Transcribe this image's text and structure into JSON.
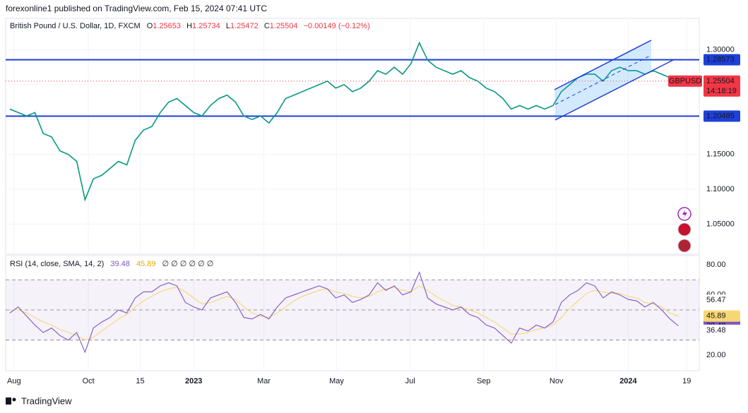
{
  "header": "forexonline1 published on TradingView.com, Feb 15, 2024 07:41 UTC",
  "footer": "TradingView",
  "chart_data": [
    {
      "type": "line",
      "title": "British Pound / U.S. Dollar, 1D, FXCM",
      "ohlc": [
        {
          "label": "O",
          "value": "1.25653"
        },
        {
          "label": "H",
          "value": "1.25734"
        },
        {
          "label": "L",
          "value": "1.25472"
        },
        {
          "label": "C",
          "value": "1.25504"
        }
      ],
      "change": "−0.00149 (−0.12%)",
      "series": [
        {
          "name": "GBPUSD",
          "color": "#089981",
          "values": [
            1.215,
            1.21,
            1.205,
            1.21,
            1.18,
            1.175,
            1.155,
            1.15,
            1.14,
            1.085,
            1.115,
            1.12,
            1.13,
            1.14,
            1.135,
            1.17,
            1.185,
            1.19,
            1.21,
            1.225,
            1.23,
            1.22,
            1.21,
            1.205,
            1.22,
            1.23,
            1.235,
            1.225,
            1.205,
            1.2,
            1.205,
            1.195,
            1.21,
            1.23,
            1.235,
            1.24,
            1.245,
            1.25,
            1.255,
            1.245,
            1.25,
            1.24,
            1.245,
            1.255,
            1.27,
            1.265,
            1.275,
            1.265,
            1.28,
            1.31,
            1.285,
            1.275,
            1.27,
            1.265,
            1.27,
            1.26,
            1.255,
            1.245,
            1.24,
            1.23,
            1.215,
            1.22,
            1.215,
            1.22,
            1.215,
            1.22,
            1.24,
            1.25,
            1.26,
            1.265,
            1.265,
            1.255,
            1.27,
            1.275,
            1.27,
            1.27,
            1.265,
            1.27,
            1.265,
            1.26,
            1.255
          ]
        }
      ],
      "xlim": [
        -0.5,
        82.5
      ],
      "xticks": [
        {
          "value": 0.5,
          "label": "Aug"
        },
        {
          "value": 9.4,
          "label": "Oct"
        },
        {
          "value": 15.6,
          "label": "15"
        },
        {
          "value": 22,
          "label": "2023"
        },
        {
          "value": 30.4,
          "label": "Mar"
        },
        {
          "value": 39.1,
          "label": "May"
        },
        {
          "value": 47.9,
          "label": "Jul"
        },
        {
          "value": 56.7,
          "label": "Sep"
        },
        {
          "value": 65.4,
          "label": "Nov"
        },
        {
          "value": 74,
          "label": "2024"
        },
        {
          "value": 81,
          "label": "19"
        }
      ],
      "ylim": [
        1.007,
        1.345
      ],
      "yticks": [
        {
          "value": 1.05,
          "label": "1.05000"
        },
        {
          "value": 1.1,
          "label": "1.10000"
        },
        {
          "value": 1.15,
          "label": "1.15000"
        },
        {
          "value": 1.2,
          "label": "1.20000"
        },
        {
          "value": 1.25,
          "label": "1.25000"
        },
        {
          "value": 1.3,
          "label": "1.30000"
        }
      ],
      "grid": true,
      "hlines": [
        {
          "value": 1.28573,
          "label": "1.28573",
          "color": "#1e3fd8"
        },
        {
          "value": 1.20485,
          "label": "1.20485",
          "color": "#1e3fd8"
        }
      ],
      "last": {
        "value": 1.25504,
        "label": "1.25504",
        "symbol": "GBPUSD",
        "countdown": "14:18:19",
        "color": "#f23645"
      }
    },
    {
      "type": "line",
      "title": "RSI (14, close, SMA, 14, 2)",
      "legend_values": [
        "39.48",
        "45.89"
      ],
      "extra": "∅ ∅ ∅ ∅ ∅ ∅",
      "series": [
        {
          "name": "RSI",
          "color": "#7e57c2",
          "values": [
            48,
            52,
            46,
            40,
            35,
            38,
            33,
            30,
            35,
            22,
            38,
            42,
            45,
            50,
            48,
            58,
            62,
            62,
            66,
            68,
            66,
            55,
            52,
            50,
            58,
            60,
            62,
            55,
            45,
            44,
            47,
            44,
            52,
            58,
            60,
            62,
            64,
            66,
            64,
            58,
            60,
            55,
            57,
            60,
            68,
            63,
            66,
            60,
            62,
            75,
            58,
            54,
            52,
            50,
            52,
            47,
            45,
            40,
            38,
            33,
            28,
            38,
            36,
            40,
            38,
            42,
            55,
            60,
            63,
            68,
            66,
            58,
            62,
            60,
            57,
            56,
            52,
            55,
            50,
            44,
            39.48
          ],
          "value_label": {
            "value": 39.48,
            "label": "39.48"
          }
        },
        {
          "name": "RSI-based MA",
          "color": "#f7d774",
          "values": [
            50,
            50,
            48,
            45,
            42,
            40,
            37,
            35,
            33,
            30,
            32,
            36,
            40,
            44,
            47,
            52,
            56,
            59,
            62,
            64,
            65,
            62,
            58,
            54,
            55,
            57,
            59,
            57,
            52,
            48,
            46,
            45,
            48,
            52,
            56,
            59,
            61,
            63,
            64,
            62,
            61,
            59,
            58,
            59,
            62,
            64,
            65,
            63,
            62,
            66,
            63,
            59,
            56,
            53,
            52,
            50,
            48,
            45,
            42,
            38,
            34,
            34,
            35,
            37,
            38,
            40,
            45,
            51,
            56,
            61,
            63,
            62,
            61,
            61,
            59,
            58,
            55,
            54,
            52,
            48,
            45.89
          ],
          "value_label": {
            "value": 45.89,
            "label": "45.89"
          }
        }
      ],
      "ylim": [
        9.7,
        86.1
      ],
      "yticks": [
        {
          "value": 20,
          "label": "20.00"
        },
        {
          "value": 60,
          "label": "60.00"
        },
        {
          "value": 80,
          "label": "80.00"
        }
      ],
      "axis_labels": [
        {
          "value": 56.47,
          "label": "56.47"
        },
        {
          "value": 36.48,
          "label": "36.48"
        }
      ],
      "bands": [
        70,
        50,
        30
      ]
    }
  ]
}
